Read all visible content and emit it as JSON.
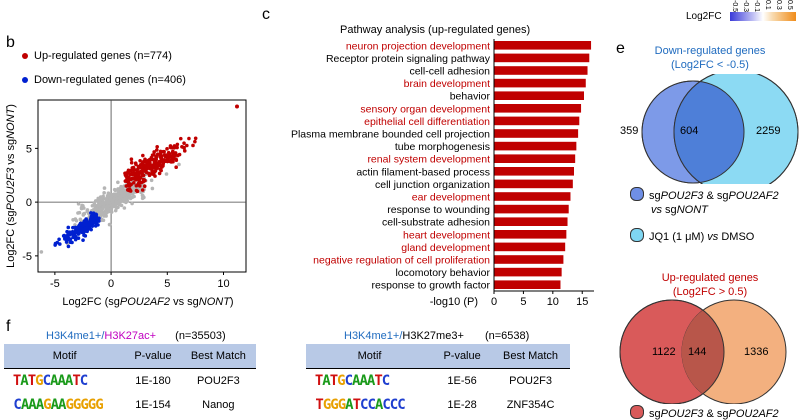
{
  "colorbar": {
    "title": "Log2FC",
    "tick_labels": [
      "-0.5",
      "-0.3",
      "-0.1",
      "0.1",
      "0.3",
      "0.5"
    ],
    "colors": [
      "#3a3ad8",
      "#6e6ee6",
      "#b0b0f2",
      "#ffffff",
      "#f7d7a8",
      "#f3b15a",
      "#f08c1a"
    ]
  },
  "panel_b": {
    "letter": "b",
    "legend": [
      {
        "label": "Up-regulated genes (n=774)",
        "color": "#c00000"
      },
      {
        "label": "Down-regulated genes (n=406)",
        "color": "#0020d0"
      }
    ]
  },
  "panel_c": {
    "letter": "c",
    "title": "Pathway analysis (up-regulated genes)",
    "xlabel": "-log10 (P)"
  },
  "chart_data": [
    {
      "type": "scatter",
      "panel": "b",
      "xlabel_parts": [
        "Log2FC (sg",
        "POU2AF2",
        " vs sg",
        "NONT",
        ")"
      ],
      "ylabel_parts": [
        "Log2FC (sg",
        "POU2F3",
        " vs sg",
        "NONT",
        ")"
      ],
      "xlim": [
        -6.5,
        12
      ],
      "ylim": [
        -6.5,
        9.5
      ],
      "xticks": [
        -5,
        0,
        5,
        10
      ],
      "yticks": [
        -5,
        0,
        5
      ],
      "series": [
        {
          "name": "Up-regulated genes (n=774)",
          "color": "#c00000",
          "center": [
            3.3,
            3.3
          ],
          "spread": [
            1.6,
            1.2
          ],
          "n": 260
        },
        {
          "name": "Down-regulated genes (n=406)",
          "color": "#0020d0",
          "center": [
            -2.5,
            -2.4
          ],
          "spread": [
            1.0,
            0.8
          ],
          "n": 180
        },
        {
          "name": "Other genes",
          "color": "#b5b5b5",
          "center": [
            0.2,
            0.1
          ],
          "spread": [
            1.5,
            1.1
          ],
          "n": 420
        }
      ]
    },
    {
      "type": "bar",
      "panel": "c",
      "orientation": "horizontal",
      "xlabel": "-log10 (P)",
      "xlim": [
        0,
        17
      ],
      "xticks": [
        0,
        5,
        10,
        15
      ],
      "categories": [
        "neuron projection development",
        "Receptor protein signaling pathway",
        "cell-cell adhesion",
        "brain development",
        "behavior",
        "sensory organ development",
        "epithelial cell differentiation",
        "Plasma membrane bounded cell projection",
        "tube morphogenesis",
        "renal system development",
        "actin filament-based process",
        "cell junction organization",
        "ear development",
        "response to wounding",
        "cell-substrate adhesion",
        "heart development",
        "gland development",
        "negative regulation of cell proliferation",
        "locomotory behavior",
        "response to growth factor"
      ],
      "highlight_red": [
        true,
        false,
        false,
        true,
        false,
        true,
        true,
        false,
        false,
        true,
        false,
        false,
        true,
        false,
        false,
        true,
        true,
        true,
        false,
        false
      ],
      "values": [
        16.5,
        16.2,
        15.9,
        15.6,
        15.3,
        14.8,
        14.5,
        14.3,
        14.0,
        13.8,
        13.6,
        13.4,
        13.0,
        12.7,
        12.5,
        12.3,
        12.1,
        11.8,
        11.5,
        11.3
      ],
      "bar_color": "#c00000"
    },
    {
      "type": "venn",
      "panel": "e-top",
      "title": "Down-regulated genes",
      "subtitle": "(Log2FC < -0.5)",
      "left_only": "359",
      "overlap": "604",
      "right_only": "2259"
    },
    {
      "type": "venn",
      "panel": "e-bottom",
      "title": "Up-regulated genes",
      "subtitle": "(Log2FC > 0.5)",
      "left_only": "1122",
      "overlap": "144",
      "right_only": "1336"
    }
  ],
  "panel_e": {
    "letter": "e",
    "legend_1_parts": [
      "sg",
      "POU2F3",
      " & sg",
      "POU2AF2"
    ],
    "legend_1_line2_parts": [
      "vs",
      " sg",
      "NONT"
    ],
    "legend_2": "JQ1 (1 μM) vs DMSO",
    "legend_2_parts": [
      "JQ1 (1 μM) ",
      "vs",
      " DMSO"
    ],
    "legend_3_parts": [
      "sg",
      "POU2F3",
      " & sg",
      "POU2AF2"
    ]
  },
  "panel_f": {
    "letter": "f",
    "left": {
      "header_a": "H3K4me1+/",
      "header_b": "H3K27ac+",
      "count": "(n=35503)",
      "columns": [
        "Motif",
        "P-value",
        "Best Match"
      ],
      "rows": [
        {
          "motif": "TATGCAAATC",
          "pvalue": "1E-180",
          "match": "POU2F3"
        },
        {
          "motif": "CAAAGAAGGGGG",
          "pvalue": "1E-154",
          "match": "Nanog"
        }
      ]
    },
    "right": {
      "header_a": "H3K4me1+/",
      "header_b": "H3K27me3+",
      "count": "(n=6538)",
      "columns": [
        "Motif",
        "P-value",
        "Best Match"
      ],
      "rows": [
        {
          "motif": "TATGCAAATC",
          "pvalue": "1E-56",
          "match": "POU2F3"
        },
        {
          "motif": "TGGGATCCACCC",
          "pvalue": "1E-28",
          "match": "ZNF354C"
        }
      ]
    }
  }
}
